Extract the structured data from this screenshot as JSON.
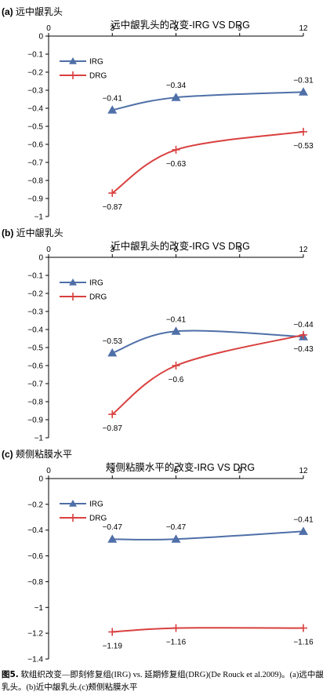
{
  "chart_data": [
    {
      "type": "line",
      "panel_label": "(a)",
      "panel_title": "远中龈乳头",
      "title": "远中龈乳头的改变-IRG VS DRG",
      "x": [
        3,
        6,
        12
      ],
      "xticks": [
        "0",
        "3",
        "6",
        "9",
        "12"
      ],
      "xlim": [
        0,
        12
      ],
      "ylim": [
        -1,
        0
      ],
      "yticks": [
        "0",
        "−0.1",
        "−0.2",
        "−0.3",
        "−0.4",
        "−0.5",
        "−0.6",
        "−0.7",
        "−0.8",
        "−0.9",
        "−1"
      ],
      "legend_position": "upper-left",
      "series": [
        {
          "name": "IRG",
          "color": "#4F6FA8",
          "marker": "triangle",
          "values": [
            -0.41,
            -0.34,
            -0.31
          ],
          "labels": [
            "−0.41",
            "−0.34",
            "−0.31"
          ]
        },
        {
          "name": "DRG",
          "color": "#D9403F",
          "marker": "plus",
          "values": [
            -0.87,
            -0.63,
            -0.53
          ],
          "labels": [
            "−0.87",
            "−0.63",
            "−0.53"
          ]
        }
      ]
    },
    {
      "type": "line",
      "panel_label": "(b)",
      "panel_title": "近中龈乳头",
      "title": "近中龈乳头的改变-IRG VS DRG",
      "x": [
        3,
        6,
        12
      ],
      "xticks": [
        "0",
        "3",
        "6",
        "9",
        "12"
      ],
      "xlim": [
        0,
        12
      ],
      "ylim": [
        -1,
        0
      ],
      "yticks": [
        "0",
        "−0.1",
        "−0.2",
        "−0.3",
        "−0.4",
        "−0.5",
        "−0.6",
        "−0.7",
        "−0.8",
        "−0.9",
        "−1"
      ],
      "legend_position": "upper-left",
      "series": [
        {
          "name": "IRG",
          "color": "#4F6FA8",
          "marker": "triangle",
          "values": [
            -0.53,
            -0.41,
            -0.44
          ],
          "labels": [
            "−0.53",
            "−0.41",
            "−0.44"
          ]
        },
        {
          "name": "DRG",
          "color": "#D9403F",
          "marker": "plus",
          "values": [
            -0.87,
            -0.6,
            -0.43
          ],
          "labels": [
            "−0.87",
            "−0.6",
            "−0.43"
          ]
        }
      ]
    },
    {
      "type": "line",
      "panel_label": "(c)",
      "panel_title": "颊侧粘膜水平",
      "title": "颊侧粘膜水平的改变-IRG VS DRG",
      "x": [
        3,
        6,
        12
      ],
      "xticks": [
        "0",
        "3",
        "6",
        "9",
        "12"
      ],
      "xlim": [
        0,
        12
      ],
      "ylim": [
        -1.4,
        0
      ],
      "yticks": [
        "0",
        "−0.2",
        "−0.4",
        "−0.6",
        "−0.8",
        "−1",
        "−1.2",
        "−1.4"
      ],
      "legend_position": "upper-left",
      "series": [
        {
          "name": "IRG",
          "color": "#4F6FA8",
          "marker": "triangle",
          "values": [
            -0.47,
            -0.47,
            -0.41
          ],
          "labels": [
            "−0.47",
            "−0.47",
            "−0.41"
          ]
        },
        {
          "name": "DRG",
          "color": "#D9403F",
          "marker": "plus",
          "values": [
            -1.19,
            -1.16,
            -1.16
          ],
          "labels": [
            "−1.19",
            "−1.16",
            "−1.16"
          ]
        }
      ]
    }
  ],
  "caption": {
    "label": "图5.",
    "text": "软组织改变—即刻修复组(IRG) vs. 延期修复组(DRG)(De Rouck et al.2009)。(a)远中龈乳头。(b)近中龈乳头.(c)颊侧粘膜水平"
  }
}
